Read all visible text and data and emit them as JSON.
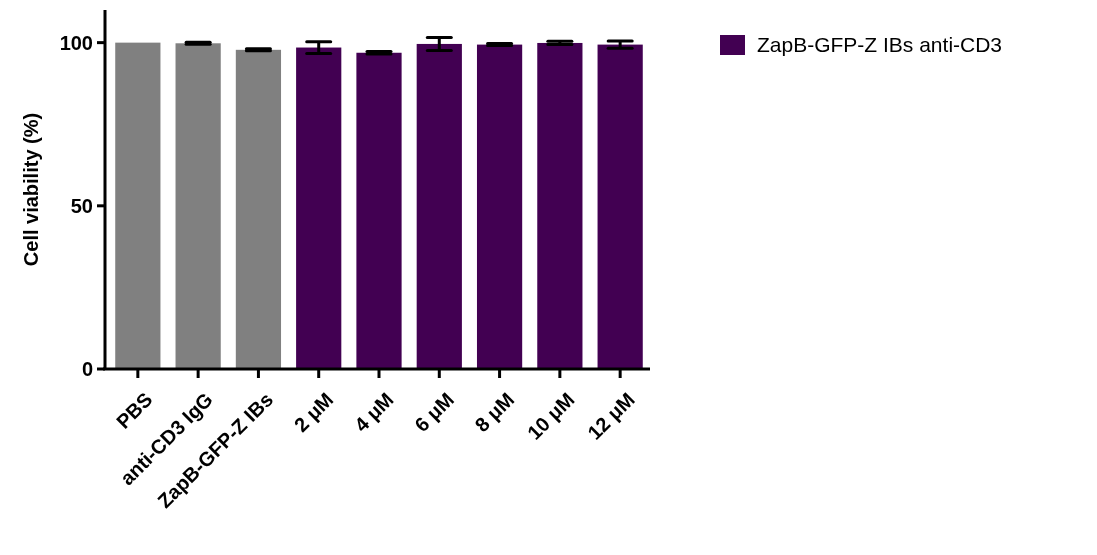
{
  "chart_data": {
    "type": "bar",
    "ylabel": "Cell viability (%)",
    "categories": [
      "PBS",
      "anti-CD3 IgG",
      "ZapB-GFP-Z IBs",
      "2 μM",
      "4 μM",
      "6 μM",
      "8 μM",
      "10 μM",
      "12 μM"
    ],
    "series": [
      {
        "color": "#808080",
        "values": [
          100,
          99.8,
          97.8,
          null,
          null,
          null,
          null,
          null,
          null
        ],
        "errors": [
          null,
          0.3,
          0.3,
          null,
          null,
          null,
          null,
          null,
          null
        ]
      },
      {
        "name": "ZapB-GFP-Z IBs anti-CD3",
        "color": "#420052",
        "values": [
          null,
          null,
          null,
          98.5,
          96.9,
          99.6,
          99.4,
          99.9,
          99.4
        ],
        "errors": [
          null,
          null,
          null,
          1.8,
          0.4,
          2,
          0.3,
          0.5,
          1.1
        ]
      }
    ],
    "ylim": [
      0,
      110
    ],
    "yticks": [
      0,
      50,
      100
    ],
    "grid": false,
    "legend": "top right"
  }
}
